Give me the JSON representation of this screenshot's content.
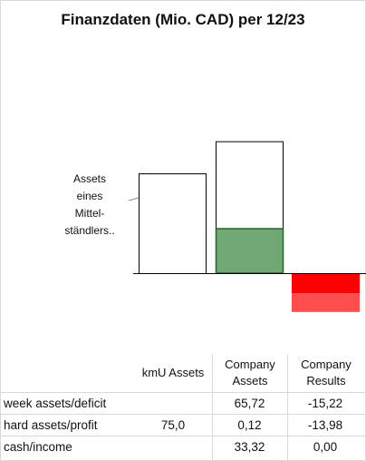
{
  "title": "Finanzdaten (Mio. CAD) per 12/23",
  "annotation": [
    "Assets",
    "eines",
    "Mittel-",
    "ständlers.."
  ],
  "colors": {
    "outline": "#000000",
    "hard_assets": "#70a873",
    "hard_assets_border": "#2f5f31",
    "deficit": "#ff0000",
    "deficit_light": "#ff4d4d"
  },
  "chart_data": {
    "type": "bar",
    "title": "Finanzdaten (Mio. CAD) per 12/23",
    "categories": [
      "kmU Assets",
      "Company Assets",
      "Company Results"
    ],
    "series": [
      {
        "name": "week assets/deficit",
        "values": [
          null,
          65.72,
          -15.22
        ]
      },
      {
        "name": "hard assets/profit",
        "values": [
          75.0,
          0.12,
          -13.98
        ]
      },
      {
        "name": "cash/income",
        "values": [
          null,
          33.32,
          0.0
        ]
      }
    ],
    "ylim": [
      -35,
      120
    ]
  },
  "table": {
    "columns": [
      "kmU Assets",
      "Company Assets",
      "Company Results"
    ],
    "rows": [
      {
        "label": "week assets/deficit",
        "values": [
          "",
          "65,72",
          "-15,22"
        ]
      },
      {
        "label": "hard assets/profit",
        "values": [
          "75,0",
          "0,12",
          "-13,98"
        ]
      },
      {
        "label": "cash/income",
        "values": [
          "",
          "33,32",
          "0,00"
        ]
      }
    ]
  }
}
